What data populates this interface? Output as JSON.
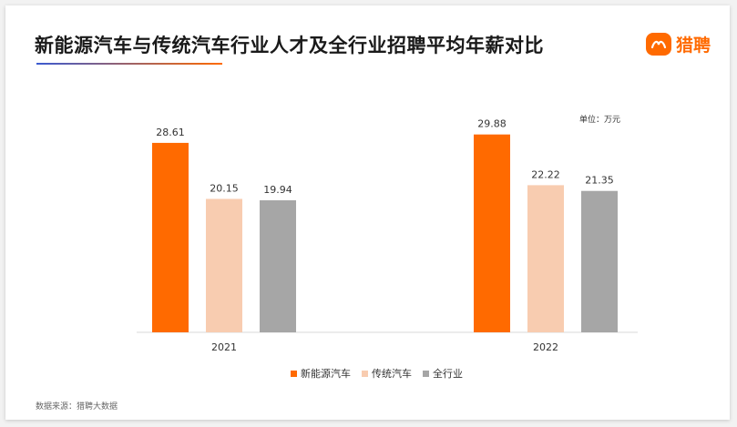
{
  "title": "新能源汽车与传统汽车行业人才及全行业招聘平均年薪对比",
  "logo": {
    "text": "猎聘"
  },
  "unit": "单位：万元",
  "source": "数据来源：猎聘大数据",
  "colors": {
    "new_energy": "#ff6a00",
    "traditional": "#f8ccb0",
    "all_industry": "#a6a6a6"
  },
  "chart_data": {
    "type": "bar",
    "title": "新能源汽车与传统汽车行业人才及全行业招聘平均年薪对比",
    "categories": [
      "2021",
      "2022"
    ],
    "series": [
      {
        "name": "新能源汽车",
        "values": [
          28.61,
          29.88
        ]
      },
      {
        "name": "传统汽车",
        "values": [
          20.15,
          22.22
        ]
      },
      {
        "name": "全行业",
        "values": [
          19.94,
          21.35
        ]
      }
    ],
    "xlabel": "",
    "ylabel": "",
    "ylim": [
      0,
      33
    ],
    "grid": false,
    "legend": "bottom"
  }
}
